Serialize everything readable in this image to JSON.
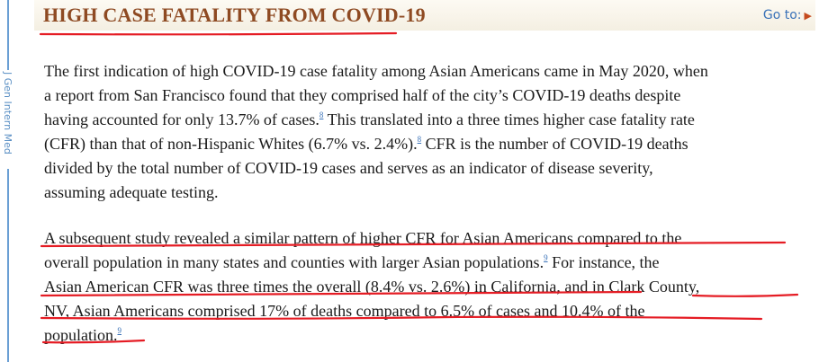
{
  "sidebar": {
    "label": "J Gen Intern Med"
  },
  "header": {
    "title": "HIGH CASE FATALITY FROM COVID-19",
    "goto_label": "Go to:",
    "goto_icon": "triangle-right-icon",
    "accent_color": "#8e4a22"
  },
  "body": {
    "para1": {
      "l1": "The first indication of high COVID-19 case fatality among Asian Americans came in May 2020, when",
      "l2": "a report from San Francisco found that they comprised half of the city’s COVID-19 deaths despite",
      "l3a": "having accounted for only 13.7% of cases.",
      "ref1": "8",
      "l3b": " This translated into a three times higher case fatality rate",
      "l4a": "(CFR) than that of non-Hispanic Whites (6.7% vs. 2.4%).",
      "ref2": "8",
      "l4b": " CFR is the number of COVID-19 deaths",
      "l5": "divided by the total number of COVID-19 cases and serves as an indicator of disease severity,",
      "l6": "assuming adequate testing."
    },
    "para2": {
      "l1": "A subsequent study revealed a similar pattern of higher CFR for Asian Americans compared to the",
      "l2a": "overall population in many states and counties with larger Asian populations.",
      "ref1": "9",
      "l2b": " For instance, the",
      "l3": "Asian American CFR was three times the overall (8.4% vs. 2.6%) in California, and in Clark County,",
      "l4": "NV, Asian Americans comprised 17% of deaths compared to 6.5% of cases and 10.4% of the",
      "l5a": "population.",
      "ref2": "9"
    }
  },
  "annotation_color": "#e51c24"
}
